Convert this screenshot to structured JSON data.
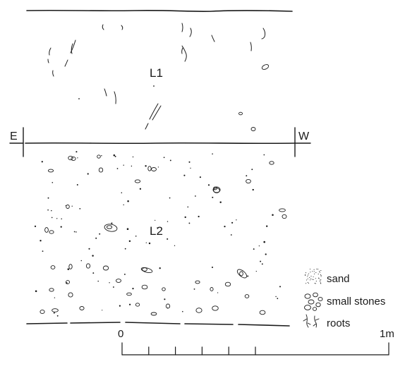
{
  "section": {
    "layer_upper": "L1",
    "layer_lower": "L2",
    "orientation_left": "E",
    "orientation_right": "W"
  },
  "legend": {
    "items": [
      {
        "label": "sand",
        "icon": "sand-stipple-icon"
      },
      {
        "label": "small stones",
        "icon": "small-stones-icon"
      },
      {
        "label": "roots",
        "icon": "roots-icon"
      }
    ]
  },
  "scale": {
    "start_label": "0",
    "end_label": "1m",
    "subdivisions": 5
  },
  "colors": {
    "ink": "#1a1a1a",
    "background": "#ffffff"
  }
}
